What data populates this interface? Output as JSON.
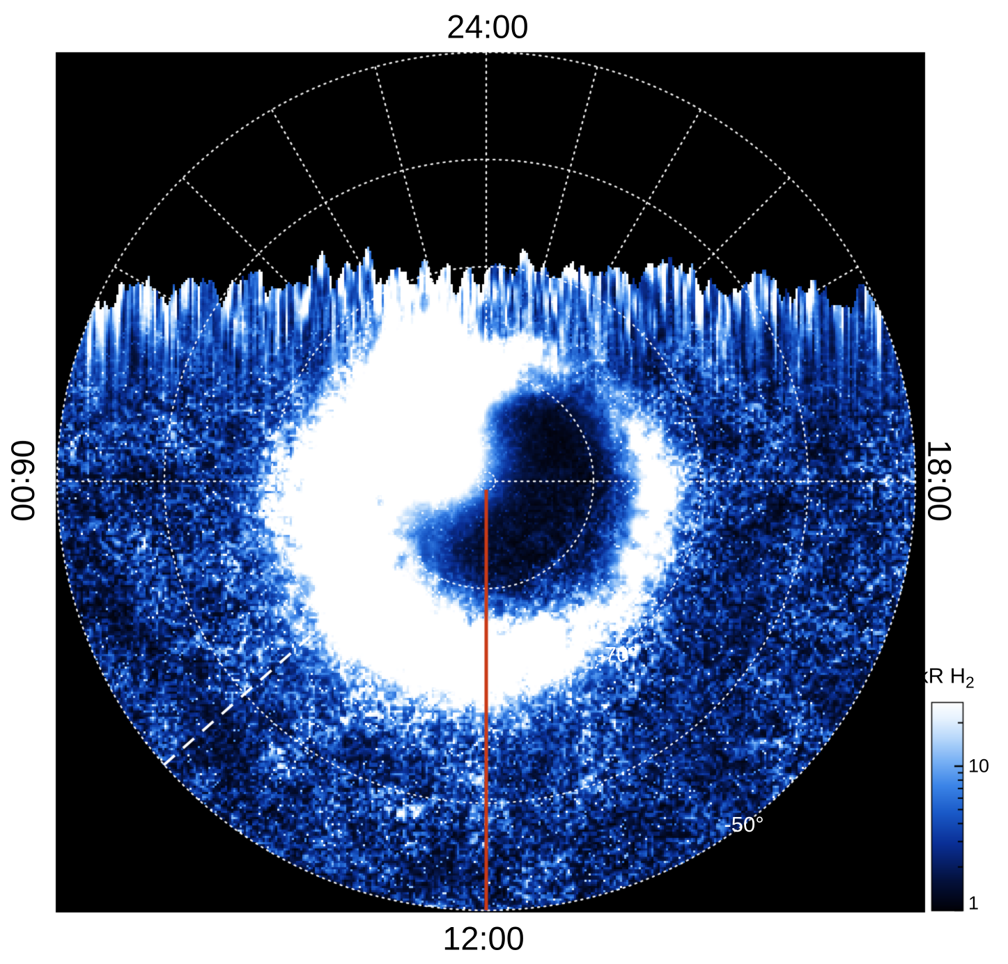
{
  "chart_data": {
    "type": "heatmap",
    "projection": "polar",
    "clock_labels": {
      "top": "24:00",
      "bottom": "12:00",
      "left": "06:00",
      "right": "18:00"
    },
    "latitude_labels": {
      "minus70": "-70°",
      "minus50": "-50°"
    },
    "grid": {
      "color": "#ffffff",
      "style": "dotted",
      "spoke_step_deg": 15,
      "latitude_circles_deg": [
        -80,
        -70,
        -60,
        -50
      ]
    },
    "colorbar": {
      "title_main": "kR H",
      "title_sub": "2",
      "scale": "log",
      "tick_labels": [
        "10",
        "1"
      ],
      "major_tick_values": [
        10,
        1
      ],
      "minor_tick_values": [
        2,
        3,
        4,
        5,
        6,
        7,
        8,
        9,
        20
      ],
      "colormap_stops": [
        [
          0.0,
          "#010107"
        ],
        [
          0.15,
          "#04123f"
        ],
        [
          0.32,
          "#0a2f96"
        ],
        [
          0.47,
          "#1a5ac8"
        ],
        [
          0.6,
          "#3c85e8"
        ],
        [
          0.72,
          "#7ab2f5"
        ],
        [
          0.83,
          "#b9d9fb"
        ],
        [
          0.92,
          "#e6f2fe"
        ],
        [
          1.0,
          "#ffffff"
        ]
      ]
    },
    "annotations": {
      "red_meridian_line_color": "#c93a17",
      "dashed_line_color": "#ffffff"
    },
    "plot_background": "#000000",
    "page_background": "#ffffff"
  }
}
